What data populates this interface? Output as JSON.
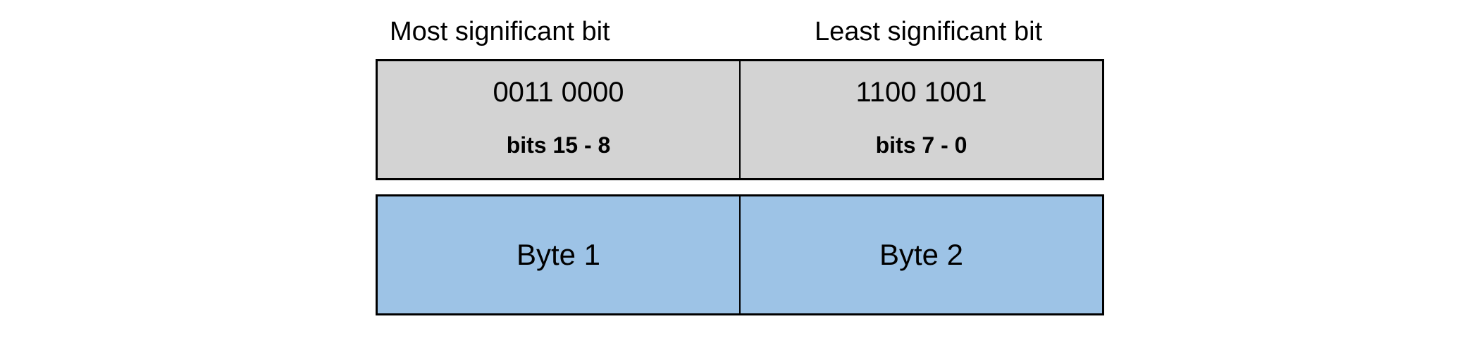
{
  "labels": {
    "msb": "Most significant bit",
    "lsb": "Least significant bit"
  },
  "bit_row": [
    {
      "value": "0011 0000",
      "range": "bits 15 - 8"
    },
    {
      "value": "1100 1001",
      "range": "bits 7 - 0"
    }
  ],
  "byte_row": [
    {
      "label": "Byte 1"
    },
    {
      "label": "Byte 2"
    }
  ],
  "colors": {
    "bit_fill": "#d3d3d3",
    "byte_fill": "#9dc3e6",
    "border": "#000000"
  }
}
